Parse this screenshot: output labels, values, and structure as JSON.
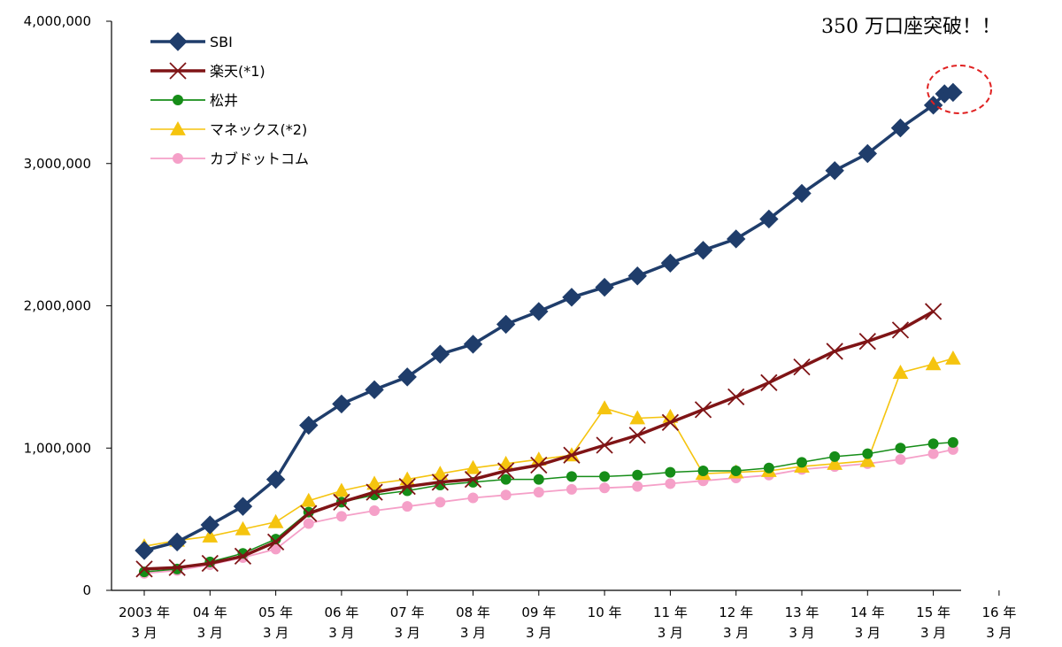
{
  "chart_data": {
    "type": "line",
    "annotation": "350 万口座突破！！",
    "y_ticks": [
      "4,000,000",
      "3,000,000",
      "2,000,000",
      "1,000,000",
      "0"
    ],
    "ylim": [
      0,
      4000000
    ],
    "x_ticks": [
      {
        "year": "2003 年",
        "month": "3 月"
      },
      {
        "year": "04 年",
        "month": "3 月"
      },
      {
        "year": "05 年",
        "month": "3 月"
      },
      {
        "year": "06 年",
        "month": "3 月"
      },
      {
        "year": "07 年",
        "month": "3 月"
      },
      {
        "year": "08 年",
        "month": "3 月"
      },
      {
        "year": "09 年",
        "month": "3 月"
      },
      {
        "year": "10 年",
        "month": ""
      },
      {
        "year": "11 年",
        "month": "3 月"
      },
      {
        "year": "12 年",
        "month": "3 月"
      },
      {
        "year": "13 年",
        "month": "3 月"
      },
      {
        "year": "14 年",
        "month": "3 月"
      },
      {
        "year": "15 年",
        "month": "3 月"
      },
      {
        "year": "16 年",
        "month": "3 月"
      }
    ],
    "series": [
      {
        "name": "SBI",
        "color": "#1f3d6b",
        "marker": "diamond",
        "points": [
          [
            0,
            280000
          ],
          [
            0.5,
            340000
          ],
          [
            1,
            460000
          ],
          [
            1.5,
            590000
          ],
          [
            2,
            780000
          ],
          [
            2.5,
            1160000
          ],
          [
            3,
            1310000
          ],
          [
            3.5,
            1410000
          ],
          [
            4,
            1500000
          ],
          [
            4.5,
            1660000
          ],
          [
            5,
            1730000
          ],
          [
            5.5,
            1870000
          ],
          [
            6,
            1960000
          ],
          [
            6.5,
            2060000
          ],
          [
            7,
            2130000
          ],
          [
            7.5,
            2210000
          ],
          [
            8,
            2300000
          ],
          [
            8.5,
            2390000
          ],
          [
            9,
            2470000
          ],
          [
            9.5,
            2610000
          ],
          [
            10,
            2790000
          ],
          [
            10.5,
            2950000
          ],
          [
            11,
            3070000
          ],
          [
            11.5,
            3250000
          ],
          [
            12,
            3410000
          ],
          [
            12.17,
            3490000
          ],
          [
            12.3,
            3500000
          ]
        ]
      },
      {
        "name": "楽天(*1)",
        "color": "#7f1416",
        "marker": "x",
        "points": [
          [
            0,
            150000
          ],
          [
            0.5,
            160000
          ],
          [
            1,
            190000
          ],
          [
            1.5,
            240000
          ],
          [
            2,
            340000
          ],
          [
            2.5,
            540000
          ],
          [
            3,
            620000
          ],
          [
            3.5,
            690000
          ],
          [
            4,
            730000
          ],
          [
            4.5,
            760000
          ],
          [
            5,
            780000
          ],
          [
            5.5,
            840000
          ],
          [
            6,
            880000
          ],
          [
            6.5,
            950000
          ],
          [
            7,
            1020000
          ],
          [
            7.5,
            1090000
          ],
          [
            8,
            1180000
          ],
          [
            8.5,
            1270000
          ],
          [
            9,
            1360000
          ],
          [
            9.5,
            1460000
          ],
          [
            10,
            1570000
          ],
          [
            10.5,
            1680000
          ],
          [
            11,
            1750000
          ],
          [
            11.5,
            1830000
          ],
          [
            12,
            1960000
          ]
        ]
      },
      {
        "name": "松井",
        "color": "#168d18",
        "marker": "circle",
        "points": [
          [
            0,
            130000
          ],
          [
            0.5,
            150000
          ],
          [
            1,
            200000
          ],
          [
            1.5,
            260000
          ],
          [
            2,
            360000
          ],
          [
            2.5,
            550000
          ],
          [
            3,
            620000
          ],
          [
            3.5,
            670000
          ],
          [
            4,
            700000
          ],
          [
            4.5,
            740000
          ],
          [
            5,
            760000
          ],
          [
            5.5,
            780000
          ],
          [
            6,
            780000
          ],
          [
            6.5,
            800000
          ],
          [
            7,
            800000
          ],
          [
            7.5,
            810000
          ],
          [
            8,
            830000
          ],
          [
            8.5,
            840000
          ],
          [
            9,
            840000
          ],
          [
            9.5,
            860000
          ],
          [
            10,
            900000
          ],
          [
            10.5,
            940000
          ],
          [
            11,
            960000
          ],
          [
            11.5,
            1000000
          ],
          [
            12,
            1030000
          ],
          [
            12.3,
            1040000
          ]
        ]
      },
      {
        "name": "マネックス(*2)",
        "color": "#f5c40f",
        "marker": "triangle",
        "points": [
          [
            0,
            310000
          ],
          [
            0.5,
            350000
          ],
          [
            1,
            380000
          ],
          [
            1.5,
            430000
          ],
          [
            2,
            480000
          ],
          [
            2.5,
            630000
          ],
          [
            3,
            700000
          ],
          [
            3.5,
            750000
          ],
          [
            4,
            780000
          ],
          [
            4.5,
            820000
          ],
          [
            5,
            860000
          ],
          [
            5.5,
            890000
          ],
          [
            6,
            920000
          ],
          [
            6.5,
            950000
          ],
          [
            7,
            1280000
          ],
          [
            7.5,
            1210000
          ],
          [
            8,
            1220000
          ],
          [
            8.5,
            820000
          ],
          [
            9,
            830000
          ],
          [
            9.5,
            840000
          ],
          [
            10,
            870000
          ],
          [
            10.5,
            890000
          ],
          [
            11,
            910000
          ],
          [
            11.5,
            1530000
          ],
          [
            12,
            1590000
          ],
          [
            12.3,
            1630000
          ]
        ]
      },
      {
        "name": "カブドットコム",
        "color": "#f5a0c8",
        "marker": "circle",
        "points": [
          [
            0,
            120000
          ],
          [
            0.5,
            140000
          ],
          [
            1,
            180000
          ],
          [
            1.5,
            230000
          ],
          [
            2,
            290000
          ],
          [
            2.5,
            470000
          ],
          [
            3,
            520000
          ],
          [
            3.5,
            560000
          ],
          [
            4,
            590000
          ],
          [
            4.5,
            620000
          ],
          [
            5,
            650000
          ],
          [
            5.5,
            670000
          ],
          [
            6,
            690000
          ],
          [
            6.5,
            710000
          ],
          [
            7,
            720000
          ],
          [
            7.5,
            730000
          ],
          [
            8,
            750000
          ],
          [
            8.5,
            770000
          ],
          [
            9,
            790000
          ],
          [
            9.5,
            810000
          ],
          [
            10,
            850000
          ],
          [
            10.5,
            870000
          ],
          [
            11,
            890000
          ],
          [
            11.5,
            920000
          ],
          [
            12,
            960000
          ],
          [
            12.3,
            990000
          ]
        ]
      }
    ]
  }
}
